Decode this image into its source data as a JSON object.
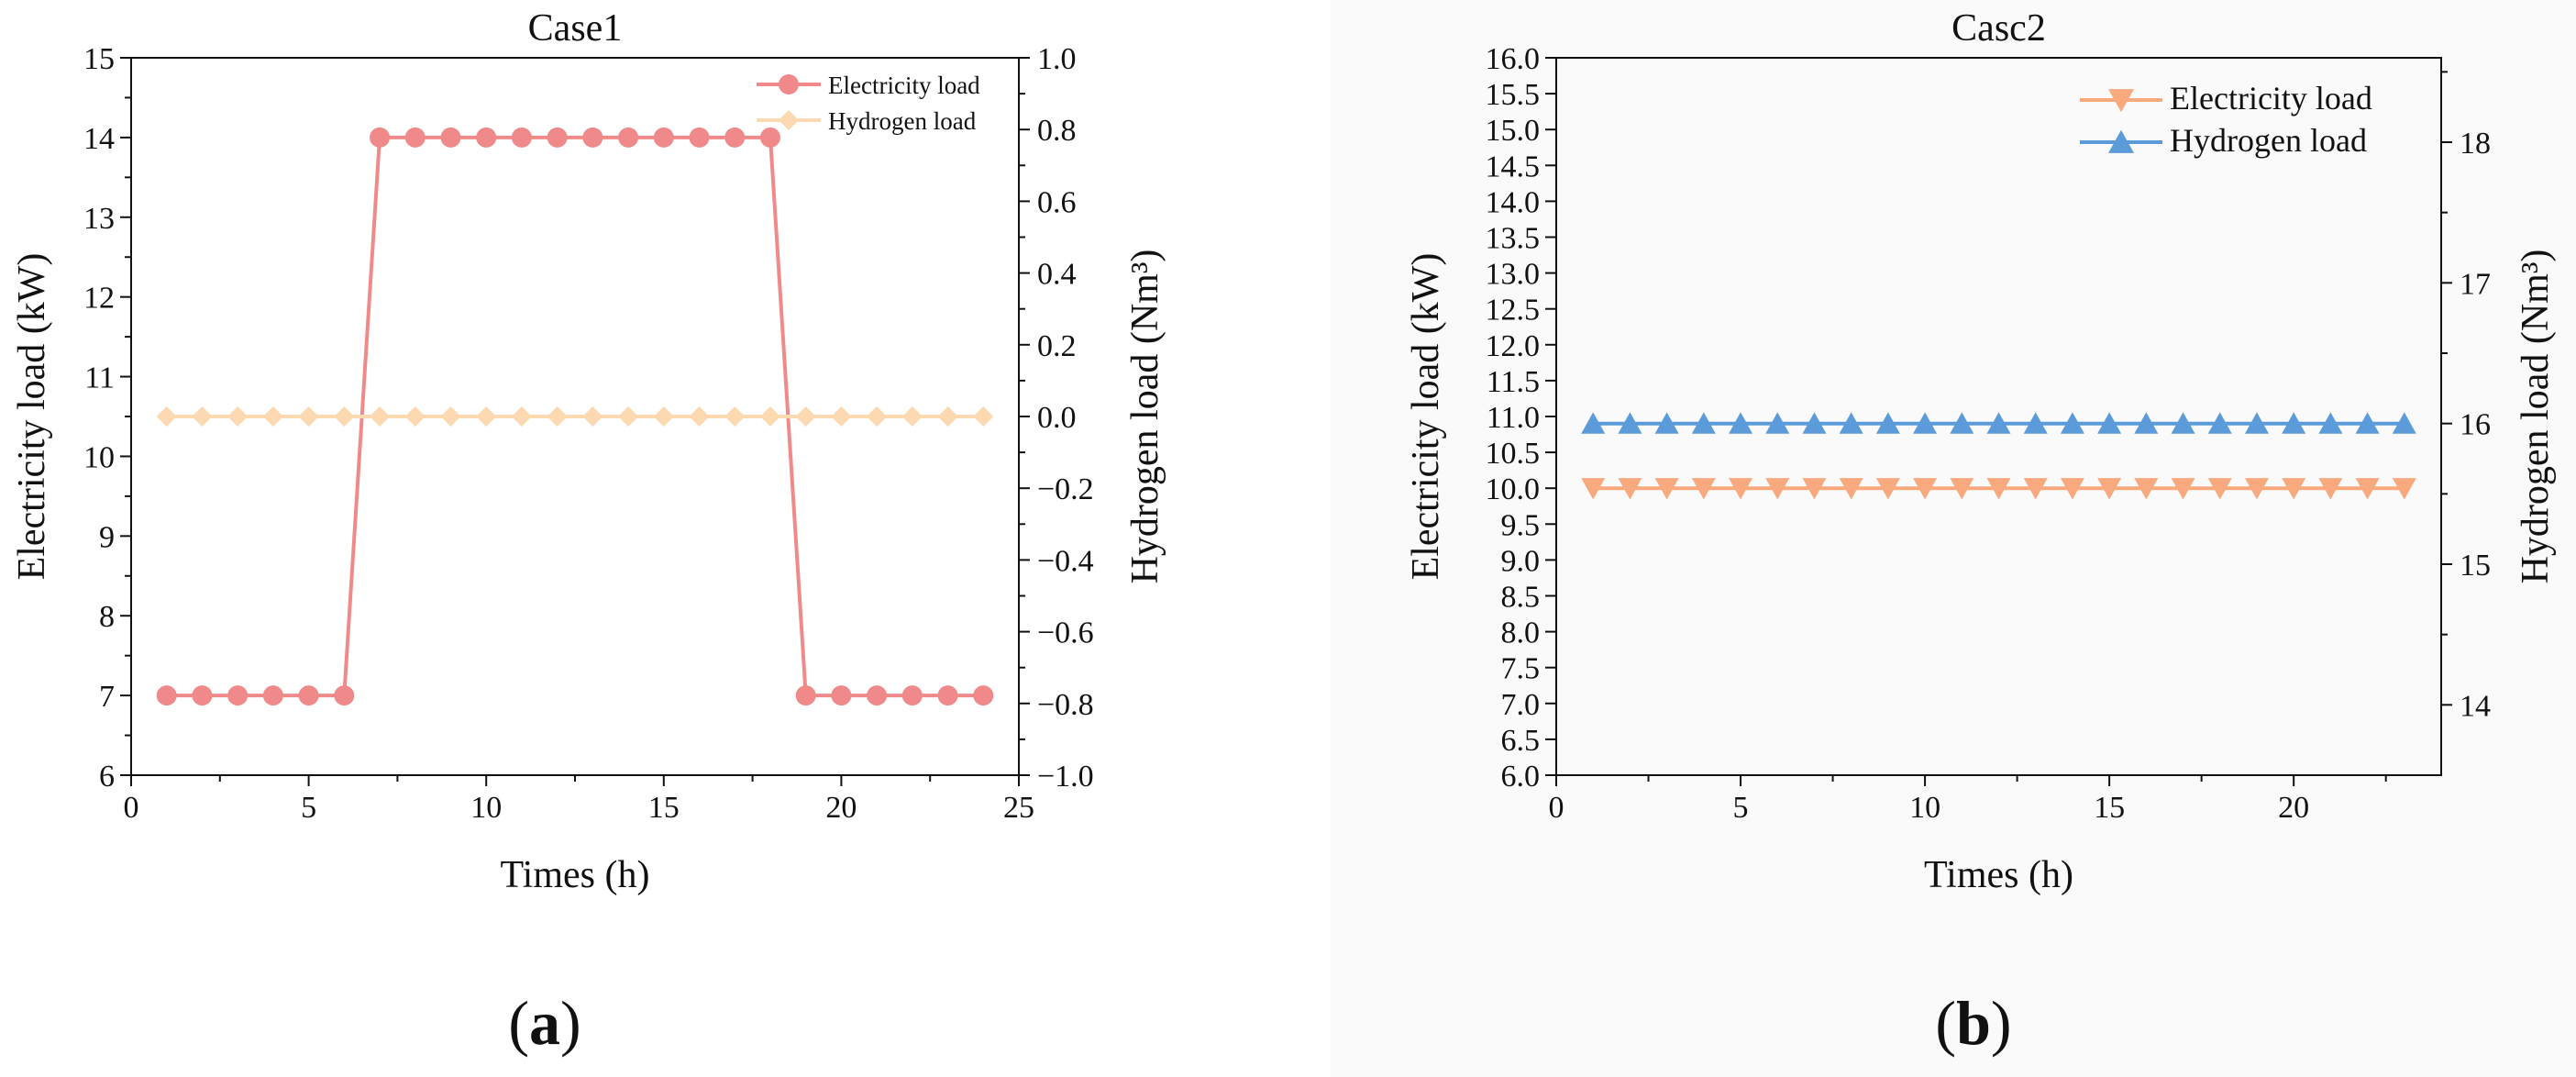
{
  "figure": {
    "label_a": "a",
    "label_b": "b",
    "paren_open": "(",
    "paren_close": ")"
  },
  "chart_data": [
    {
      "type": "line",
      "title": "Case1",
      "xlabel": "Times (h)",
      "ylabel": "Electricity load (kW)",
      "y2label": "Hydrogen load (Nm³)",
      "xlim": [
        0,
        25
      ],
      "ylim": [
        6,
        15
      ],
      "y2lim": [
        -1.0,
        1.0
      ],
      "x_ticks": [
        "0",
        "5",
        "10",
        "15",
        "20",
        "25"
      ],
      "y_ticks": [
        "6",
        "7",
        "8",
        "9",
        "10",
        "11",
        "12",
        "13",
        "14",
        "15"
      ],
      "y2_ticks": [
        "−1.0",
        "−0.8",
        "−0.6",
        "−0.4",
        "−0.2",
        "0.0",
        "0.2",
        "0.4",
        "0.6",
        "0.8",
        "1.0"
      ],
      "grid": false,
      "legend_position": "top-right",
      "x": [
        1,
        2,
        3,
        4,
        5,
        6,
        7,
        8,
        9,
        10,
        11,
        12,
        13,
        14,
        15,
        16,
        17,
        18,
        19,
        20,
        21,
        22,
        23,
        24
      ],
      "series": [
        {
          "name": "Electricity load",
          "axis": "left",
          "marker": "circle",
          "color": "#f08a8a",
          "values": [
            7,
            7,
            7,
            7,
            7,
            7,
            14,
            14,
            14,
            14,
            14,
            14,
            14,
            14,
            14,
            14,
            14,
            14,
            7,
            7,
            7,
            7,
            7,
            7
          ]
        },
        {
          "name": "Hydrogen load",
          "axis": "right",
          "marker": "diamond",
          "color": "#fcd9b0",
          "values": [
            0,
            0,
            0,
            0,
            0,
            0,
            0,
            0,
            0,
            0,
            0,
            0,
            0,
            0,
            0,
            0,
            0,
            0,
            0,
            0,
            0,
            0,
            0,
            0
          ]
        }
      ]
    },
    {
      "type": "line",
      "title": "Casc2",
      "xlabel": "Times (h)",
      "ylabel": "Electricity load (kW)",
      "y2label": "Hydrogen load (Nm³)",
      "xlim": [
        0,
        24
      ],
      "ylim": [
        6.0,
        16.0
      ],
      "y2lim": [
        13.5,
        18.6
      ],
      "x_ticks": [
        "0",
        "5",
        "10",
        "15",
        "20"
      ],
      "y_ticks": [
        "6.0",
        "6.5",
        "7.0",
        "7.5",
        "8.0",
        "8.5",
        "9.0",
        "9.5",
        "10.0",
        "10.5",
        "11.0",
        "11.5",
        "12.0",
        "12.5",
        "13.0",
        "13.5",
        "14.0",
        "14.5",
        "15.0",
        "15.5",
        "16.0"
      ],
      "y2_ticks": [
        "14",
        "15",
        "16",
        "17",
        "18"
      ],
      "grid": false,
      "legend_position": "top-right",
      "x": [
        1,
        2,
        3,
        4,
        5,
        6,
        7,
        8,
        9,
        10,
        11,
        12,
        13,
        14,
        15,
        16,
        17,
        18,
        19,
        20,
        21,
        22,
        23
      ],
      "series": [
        {
          "name": "Electricity load",
          "axis": "left",
          "marker": "triangle-down",
          "color": "#f9a97e",
          "values": [
            10,
            10,
            10,
            10,
            10,
            10,
            10,
            10,
            10,
            10,
            10,
            10,
            10,
            10,
            10,
            10,
            10,
            10,
            10,
            10,
            10,
            10,
            10
          ]
        },
        {
          "name": "Hydrogen load",
          "axis": "right",
          "marker": "triangle-up",
          "color": "#5b9bd9",
          "values": [
            16,
            16,
            16,
            16,
            16,
            16,
            16,
            16,
            16,
            16,
            16,
            16,
            16,
            16,
            16,
            16,
            16,
            16,
            16,
            16,
            16,
            16,
            16
          ]
        }
      ]
    }
  ]
}
